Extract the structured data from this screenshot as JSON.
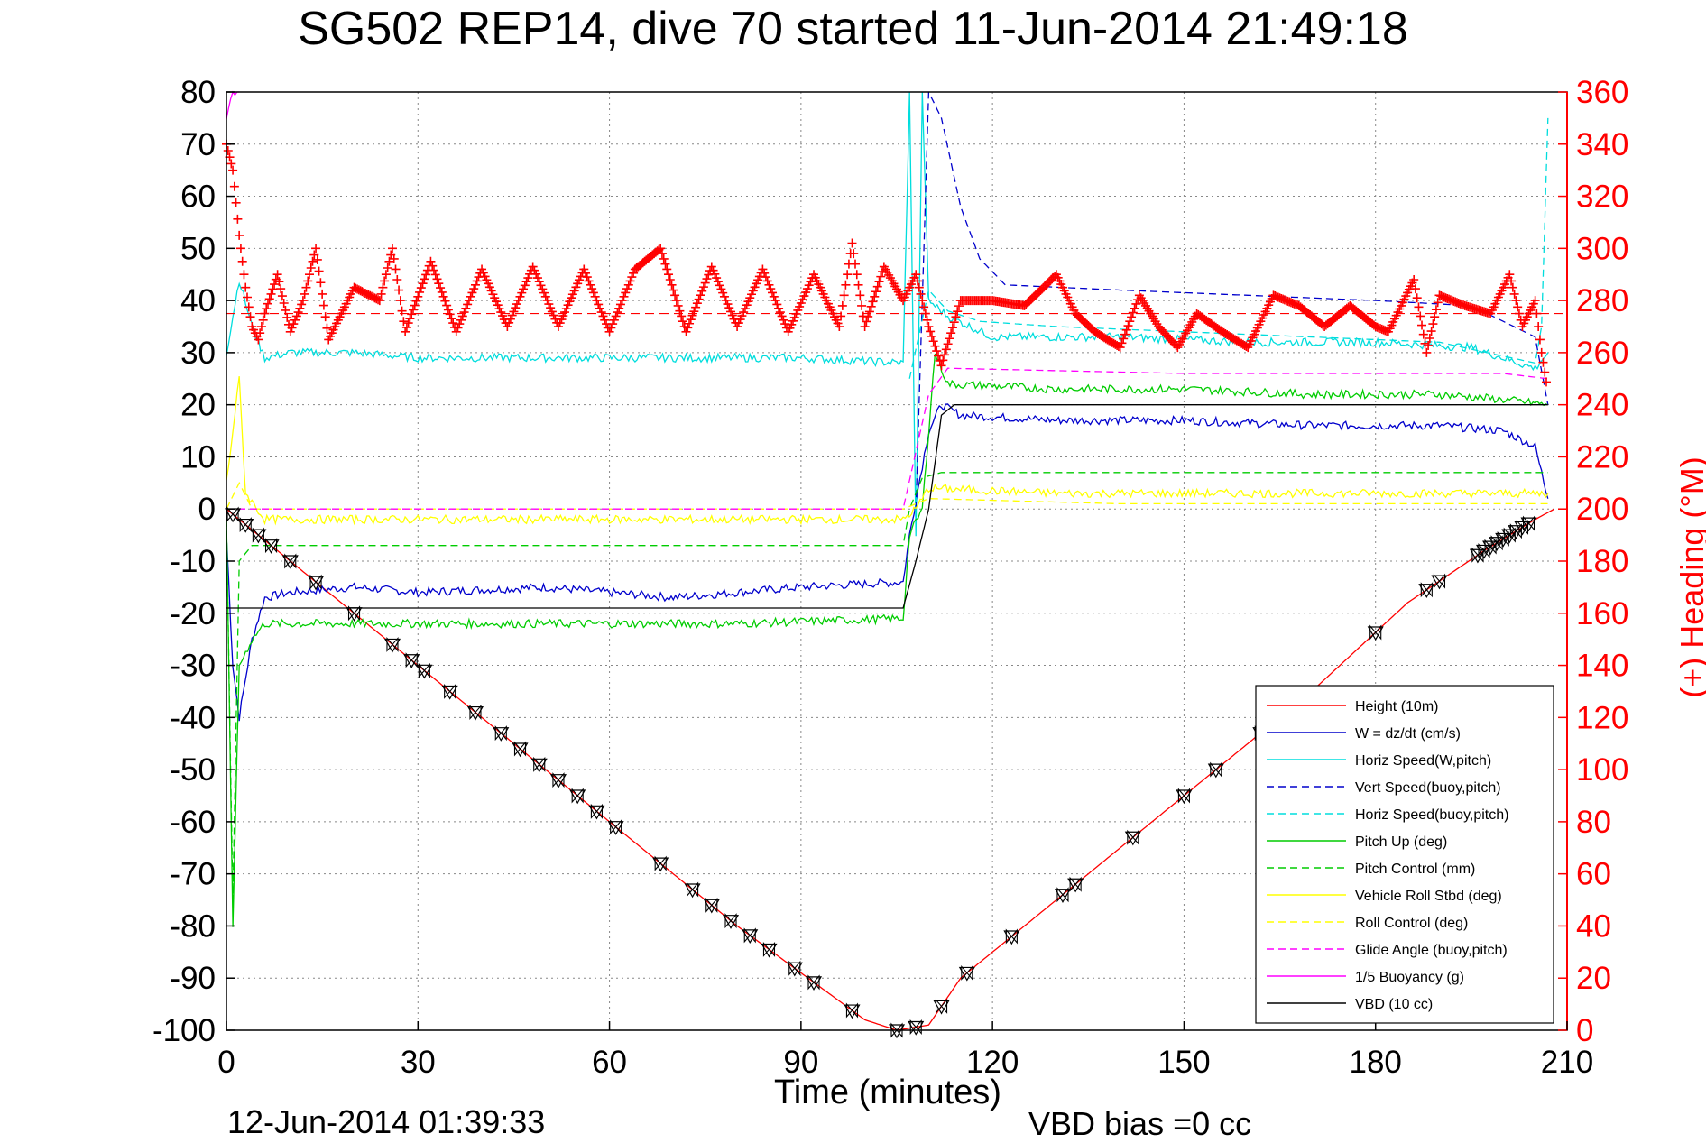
{
  "title": "SG502 REP14, dive 70 started 11-Jun-2014 21:49:18",
  "footer_left": "12-Jun-2014 01:39:33",
  "footer_right": "VBD bias =0 cc",
  "colors": {
    "red": "#ff0000",
    "blue": "#0000cc",
    "cyan": "#00dddd",
    "green": "#00cc00",
    "yellow": "#ffff00",
    "magenta": "#ff00ff",
    "black": "#000000"
  },
  "chart_data": {
    "type": "line",
    "title": "SG502 REP14, dive 70 started 11-Jun-2014 21:49:18",
    "xlabel": "Time (minutes)",
    "ylabel": "",
    "ylabel_right": "(+) Heading (°M)",
    "xlim": [
      0,
      210
    ],
    "ylim": [
      -100,
      80
    ],
    "ylim_right": [
      0,
      360
    ],
    "xticks": [
      0,
      30,
      60,
      90,
      120,
      150,
      180,
      210
    ],
    "yticks": [
      -100,
      -90,
      -80,
      -70,
      -60,
      -50,
      -40,
      -30,
      -20,
      -10,
      0,
      10,
      20,
      30,
      40,
      50,
      60,
      70,
      80
    ],
    "yticks_right": [
      0,
      20,
      40,
      60,
      80,
      100,
      120,
      140,
      160,
      180,
      200,
      220,
      240,
      260,
      280,
      300,
      320,
      340,
      360
    ],
    "grid": true,
    "legend_position": "lower-right",
    "legend": [
      {
        "label": "Height (10m)",
        "color": "#ff0000",
        "dash": false
      },
      {
        "label": "W = dz/dt (cm/s)",
        "color": "#0000cc",
        "dash": false
      },
      {
        "label": "Horiz Speed(W,pitch)",
        "color": "#00dddd",
        "dash": false
      },
      {
        "label": "Vert Speed(buoy,pitch)",
        "color": "#0000cc",
        "dash": true
      },
      {
        "label": "Horiz Speed(buoy,pitch)",
        "color": "#00dddd",
        "dash": true
      },
      {
        "label": "Pitch Up (deg)",
        "color": "#00cc00",
        "dash": false
      },
      {
        "label": "Pitch Control (mm)",
        "color": "#00cc00",
        "dash": true
      },
      {
        "label": "Vehicle Roll Stbd (deg)",
        "color": "#ffff00",
        "dash": false
      },
      {
        "label": "Roll Control (deg)",
        "color": "#ffff00",
        "dash": true
      },
      {
        "label": "Glide Angle (buoy,pitch)",
        "color": "#ff00ff",
        "dash": true
      },
      {
        "label": "1/5 Buoyancy (g)",
        "color": "#ff00ff",
        "dash": false
      },
      {
        "label": "VBD (10 cc)",
        "color": "#000000",
        "dash": false
      }
    ],
    "series": [
      {
        "name": "Height (10m)",
        "color": "#ff0000",
        "dash": false,
        "points": [
          [
            0,
            0
          ],
          [
            20,
            -20
          ],
          [
            40,
            -40
          ],
          [
            60,
            -60
          ],
          [
            80,
            -80
          ],
          [
            100,
            -98
          ],
          [
            105,
            -100
          ],
          [
            110,
            -99
          ],
          [
            115,
            -90
          ],
          [
            130,
            -75
          ],
          [
            150,
            -55
          ],
          [
            170,
            -35
          ],
          [
            185,
            -18
          ],
          [
            197,
            -8
          ],
          [
            205,
            -2
          ],
          [
            208,
            0
          ]
        ]
      },
      {
        "name": "W = dz/dt (cm/s)",
        "color": "#0000cc",
        "dash": false,
        "points": [
          [
            0,
            -5
          ],
          [
            1,
            -30
          ],
          [
            2,
            -40
          ],
          [
            4,
            -25
          ],
          [
            6,
            -17
          ],
          [
            10,
            -16
          ],
          [
            20,
            -15
          ],
          [
            30,
            -16
          ],
          [
            50,
            -15
          ],
          [
            70,
            -17
          ],
          [
            90,
            -15
          ],
          [
            106,
            -14
          ],
          [
            107,
            -5
          ],
          [
            110,
            15
          ],
          [
            112,
            20
          ],
          [
            115,
            18
          ],
          [
            130,
            17
          ],
          [
            150,
            17
          ],
          [
            170,
            16
          ],
          [
            190,
            16
          ],
          [
            200,
            15
          ],
          [
            205,
            12
          ],
          [
            207,
            2
          ]
        ]
      },
      {
        "name": "Horiz Speed(W,pitch)",
        "color": "#00dddd",
        "dash": false,
        "points": [
          [
            0,
            30
          ],
          [
            2,
            44
          ],
          [
            4,
            35
          ],
          [
            6,
            29
          ],
          [
            10,
            30
          ],
          [
            20,
            30
          ],
          [
            30,
            29
          ],
          [
            50,
            29
          ],
          [
            70,
            29
          ],
          [
            90,
            29
          ],
          [
            106,
            28
          ],
          [
            107,
            80
          ],
          [
            108,
            -5
          ],
          [
            109,
            80
          ],
          [
            110,
            40
          ],
          [
            113,
            37
          ],
          [
            120,
            33
          ],
          [
            140,
            33
          ],
          [
            160,
            32
          ],
          [
            180,
            32
          ],
          [
            195,
            31
          ],
          [
            205,
            27
          ],
          [
            207,
            30
          ]
        ]
      },
      {
        "name": "Vert Speed(buoy,pitch)",
        "color": "#0000cc",
        "dash": true,
        "points": [
          [
            108,
            0
          ],
          [
            110,
            80
          ],
          [
            112,
            75
          ],
          [
            115,
            58
          ],
          [
            118,
            48
          ],
          [
            122,
            43
          ],
          [
            140,
            42
          ],
          [
            160,
            41
          ],
          [
            180,
            40
          ],
          [
            195,
            39
          ],
          [
            205,
            33
          ],
          [
            207,
            20
          ]
        ]
      },
      {
        "name": "Horiz Speed(buoy,pitch)",
        "color": "#00dddd",
        "dash": true,
        "points": [
          [
            107,
            25
          ],
          [
            110,
            42
          ],
          [
            113,
            38
          ],
          [
            118,
            36
          ],
          [
            130,
            35
          ],
          [
            150,
            34
          ],
          [
            170,
            33
          ],
          [
            190,
            32
          ],
          [
            205,
            28
          ],
          [
            206,
            35
          ],
          [
            207,
            75
          ]
        ]
      },
      {
        "name": "Pitch Up (deg)",
        "color": "#00cc00",
        "dash": false,
        "points": [
          [
            0,
            -2
          ],
          [
            1,
            -80
          ],
          [
            2,
            -30
          ],
          [
            4,
            -25
          ],
          [
            6,
            -22
          ],
          [
            10,
            -22
          ],
          [
            20,
            -22
          ],
          [
            40,
            -22
          ],
          [
            60,
            -22
          ],
          [
            80,
            -22
          ],
          [
            106,
            -21
          ],
          [
            107,
            -5
          ],
          [
            109,
            0
          ],
          [
            111,
            30
          ],
          [
            113,
            24
          ],
          [
            130,
            23
          ],
          [
            150,
            23
          ],
          [
            170,
            22
          ],
          [
            190,
            22
          ],
          [
            200,
            21
          ],
          [
            207,
            20
          ]
        ]
      },
      {
        "name": "Pitch Control (mm)",
        "color": "#00cc00",
        "dash": true,
        "points": [
          [
            0,
            -2
          ],
          [
            1,
            -75
          ],
          [
            2,
            -10
          ],
          [
            4,
            -7
          ],
          [
            10,
            -7
          ],
          [
            40,
            -7
          ],
          [
            70,
            -7
          ],
          [
            106,
            -7
          ],
          [
            107,
            0
          ],
          [
            109,
            6
          ],
          [
            112,
            7
          ],
          [
            140,
            7
          ],
          [
            170,
            7
          ],
          [
            207,
            7
          ]
        ]
      },
      {
        "name": "Vehicle Roll Stbd (deg)",
        "color": "#ffff00",
        "dash": false,
        "points": [
          [
            0,
            5
          ],
          [
            2,
            25
          ],
          [
            3,
            3
          ],
          [
            6,
            -2
          ],
          [
            10,
            -2
          ],
          [
            20,
            -2
          ],
          [
            40,
            -2
          ],
          [
            60,
            -2
          ],
          [
            80,
            -2
          ],
          [
            106,
            -2
          ],
          [
            108,
            0
          ],
          [
            110,
            4
          ],
          [
            130,
            3
          ],
          [
            160,
            3
          ],
          [
            190,
            3
          ],
          [
            207,
            3
          ]
        ]
      },
      {
        "name": "Roll Control (deg)",
        "color": "#ffff00",
        "dash": true,
        "points": [
          [
            0,
            0
          ],
          [
            2,
            5
          ],
          [
            4,
            0
          ],
          [
            20,
            0
          ],
          [
            40,
            0
          ],
          [
            60,
            0
          ],
          [
            80,
            0
          ],
          [
            106,
            0
          ],
          [
            110,
            2
          ],
          [
            140,
            1
          ],
          [
            170,
            1
          ],
          [
            207,
            1
          ]
        ]
      },
      {
        "name": "Glide Angle (buoy,pitch)",
        "color": "#ff00ff",
        "dash": true,
        "points": [
          [
            0,
            0
          ],
          [
            50,
            0
          ],
          [
            106,
            0
          ],
          [
            110,
            22
          ],
          [
            113,
            27
          ],
          [
            150,
            26
          ],
          [
            180,
            26
          ],
          [
            200,
            26
          ],
          [
            207,
            25
          ]
        ]
      },
      {
        "name": "1/5 Buoyancy (g)",
        "color": "#ff00ff",
        "dash": false,
        "points": [
          [
            0,
            75
          ],
          [
            1,
            80
          ],
          [
            2,
            80
          ]
        ]
      },
      {
        "name": "VBD (10 cc)",
        "color": "#000000",
        "dash": false,
        "points": [
          [
            0,
            -19
          ],
          [
            1,
            -19
          ],
          [
            20,
            -19
          ],
          [
            60,
            -19
          ],
          [
            106,
            -19
          ],
          [
            108,
            -10
          ],
          [
            110,
            0
          ],
          [
            112,
            18
          ],
          [
            114,
            20
          ],
          [
            150,
            20
          ],
          [
            207,
            20
          ]
        ]
      }
    ],
    "heading_series": {
      "name": "(+) Heading (°M)",
      "color": "#ff0000",
      "marker": "+",
      "axis": "right",
      "reference_line": 275,
      "points": [
        [
          0,
          340
        ],
        [
          1,
          330
        ],
        [
          2,
          305
        ],
        [
          3,
          285
        ],
        [
          4,
          270
        ],
        [
          5,
          265
        ],
        [
          6,
          275
        ],
        [
          8,
          290
        ],
        [
          10,
          268
        ],
        [
          12,
          280
        ],
        [
          14,
          300
        ],
        [
          16,
          265
        ],
        [
          20,
          285
        ],
        [
          24,
          280
        ],
        [
          26,
          300
        ],
        [
          28,
          268
        ],
        [
          32,
          295
        ],
        [
          36,
          268
        ],
        [
          40,
          292
        ],
        [
          44,
          270
        ],
        [
          48,
          293
        ],
        [
          52,
          270
        ],
        [
          56,
          292
        ],
        [
          60,
          268
        ],
        [
          64,
          292
        ],
        [
          68,
          300
        ],
        [
          72,
          268
        ],
        [
          76,
          293
        ],
        [
          80,
          270
        ],
        [
          84,
          292
        ],
        [
          88,
          268
        ],
        [
          92,
          290
        ],
        [
          96,
          270
        ],
        [
          98,
          302
        ],
        [
          100,
          270
        ],
        [
          103,
          293
        ],
        [
          106,
          280
        ],
        [
          108,
          290
        ],
        [
          110,
          270
        ],
        [
          112,
          255
        ],
        [
          115,
          280
        ],
        [
          120,
          280
        ],
        [
          125,
          278
        ],
        [
          128,
          285
        ],
        [
          130,
          290
        ],
        [
          133,
          275
        ],
        [
          136,
          268
        ],
        [
          140,
          262
        ],
        [
          143,
          282
        ],
        [
          146,
          270
        ],
        [
          149,
          262
        ],
        [
          152,
          275
        ],
        [
          156,
          268
        ],
        [
          160,
          262
        ],
        [
          164,
          282
        ],
        [
          168,
          278
        ],
        [
          172,
          270
        ],
        [
          176,
          278
        ],
        [
          180,
          270
        ],
        [
          182,
          268
        ],
        [
          186,
          288
        ],
        [
          188,
          260
        ],
        [
          190,
          282
        ],
        [
          194,
          278
        ],
        [
          198,
          275
        ],
        [
          201,
          290
        ],
        [
          203,
          270
        ],
        [
          205,
          280
        ],
        [
          206,
          260
        ],
        [
          207,
          245
        ]
      ]
    },
    "markers": {
      "down_triangle_x": [
        1,
        3,
        5,
        7,
        10,
        14,
        20,
        26,
        29,
        31,
        35,
        39,
        43,
        46,
        49,
        52,
        55,
        58,
        61,
        68,
        73,
        76,
        79,
        82,
        85,
        89,
        92,
        98,
        105,
        108,
        112,
        116,
        123,
        131,
        133,
        142,
        150,
        155,
        162,
        180,
        188,
        190,
        196,
        197,
        198,
        199,
        200,
        201,
        202,
        203,
        204
      ],
      "hourglass_x": [
        1,
        3,
        5,
        7,
        10,
        14,
        20,
        26,
        29,
        31,
        35,
        39,
        43,
        46,
        49,
        52,
        55,
        58,
        61,
        68,
        73,
        76,
        79,
        82,
        85,
        89,
        92,
        98,
        105,
        108,
        112,
        116,
        123,
        131,
        133,
        142,
        150,
        155,
        162,
        180,
        188,
        190,
        196,
        197,
        198,
        199,
        200,
        201,
        202,
        203,
        204
      ]
    }
  }
}
